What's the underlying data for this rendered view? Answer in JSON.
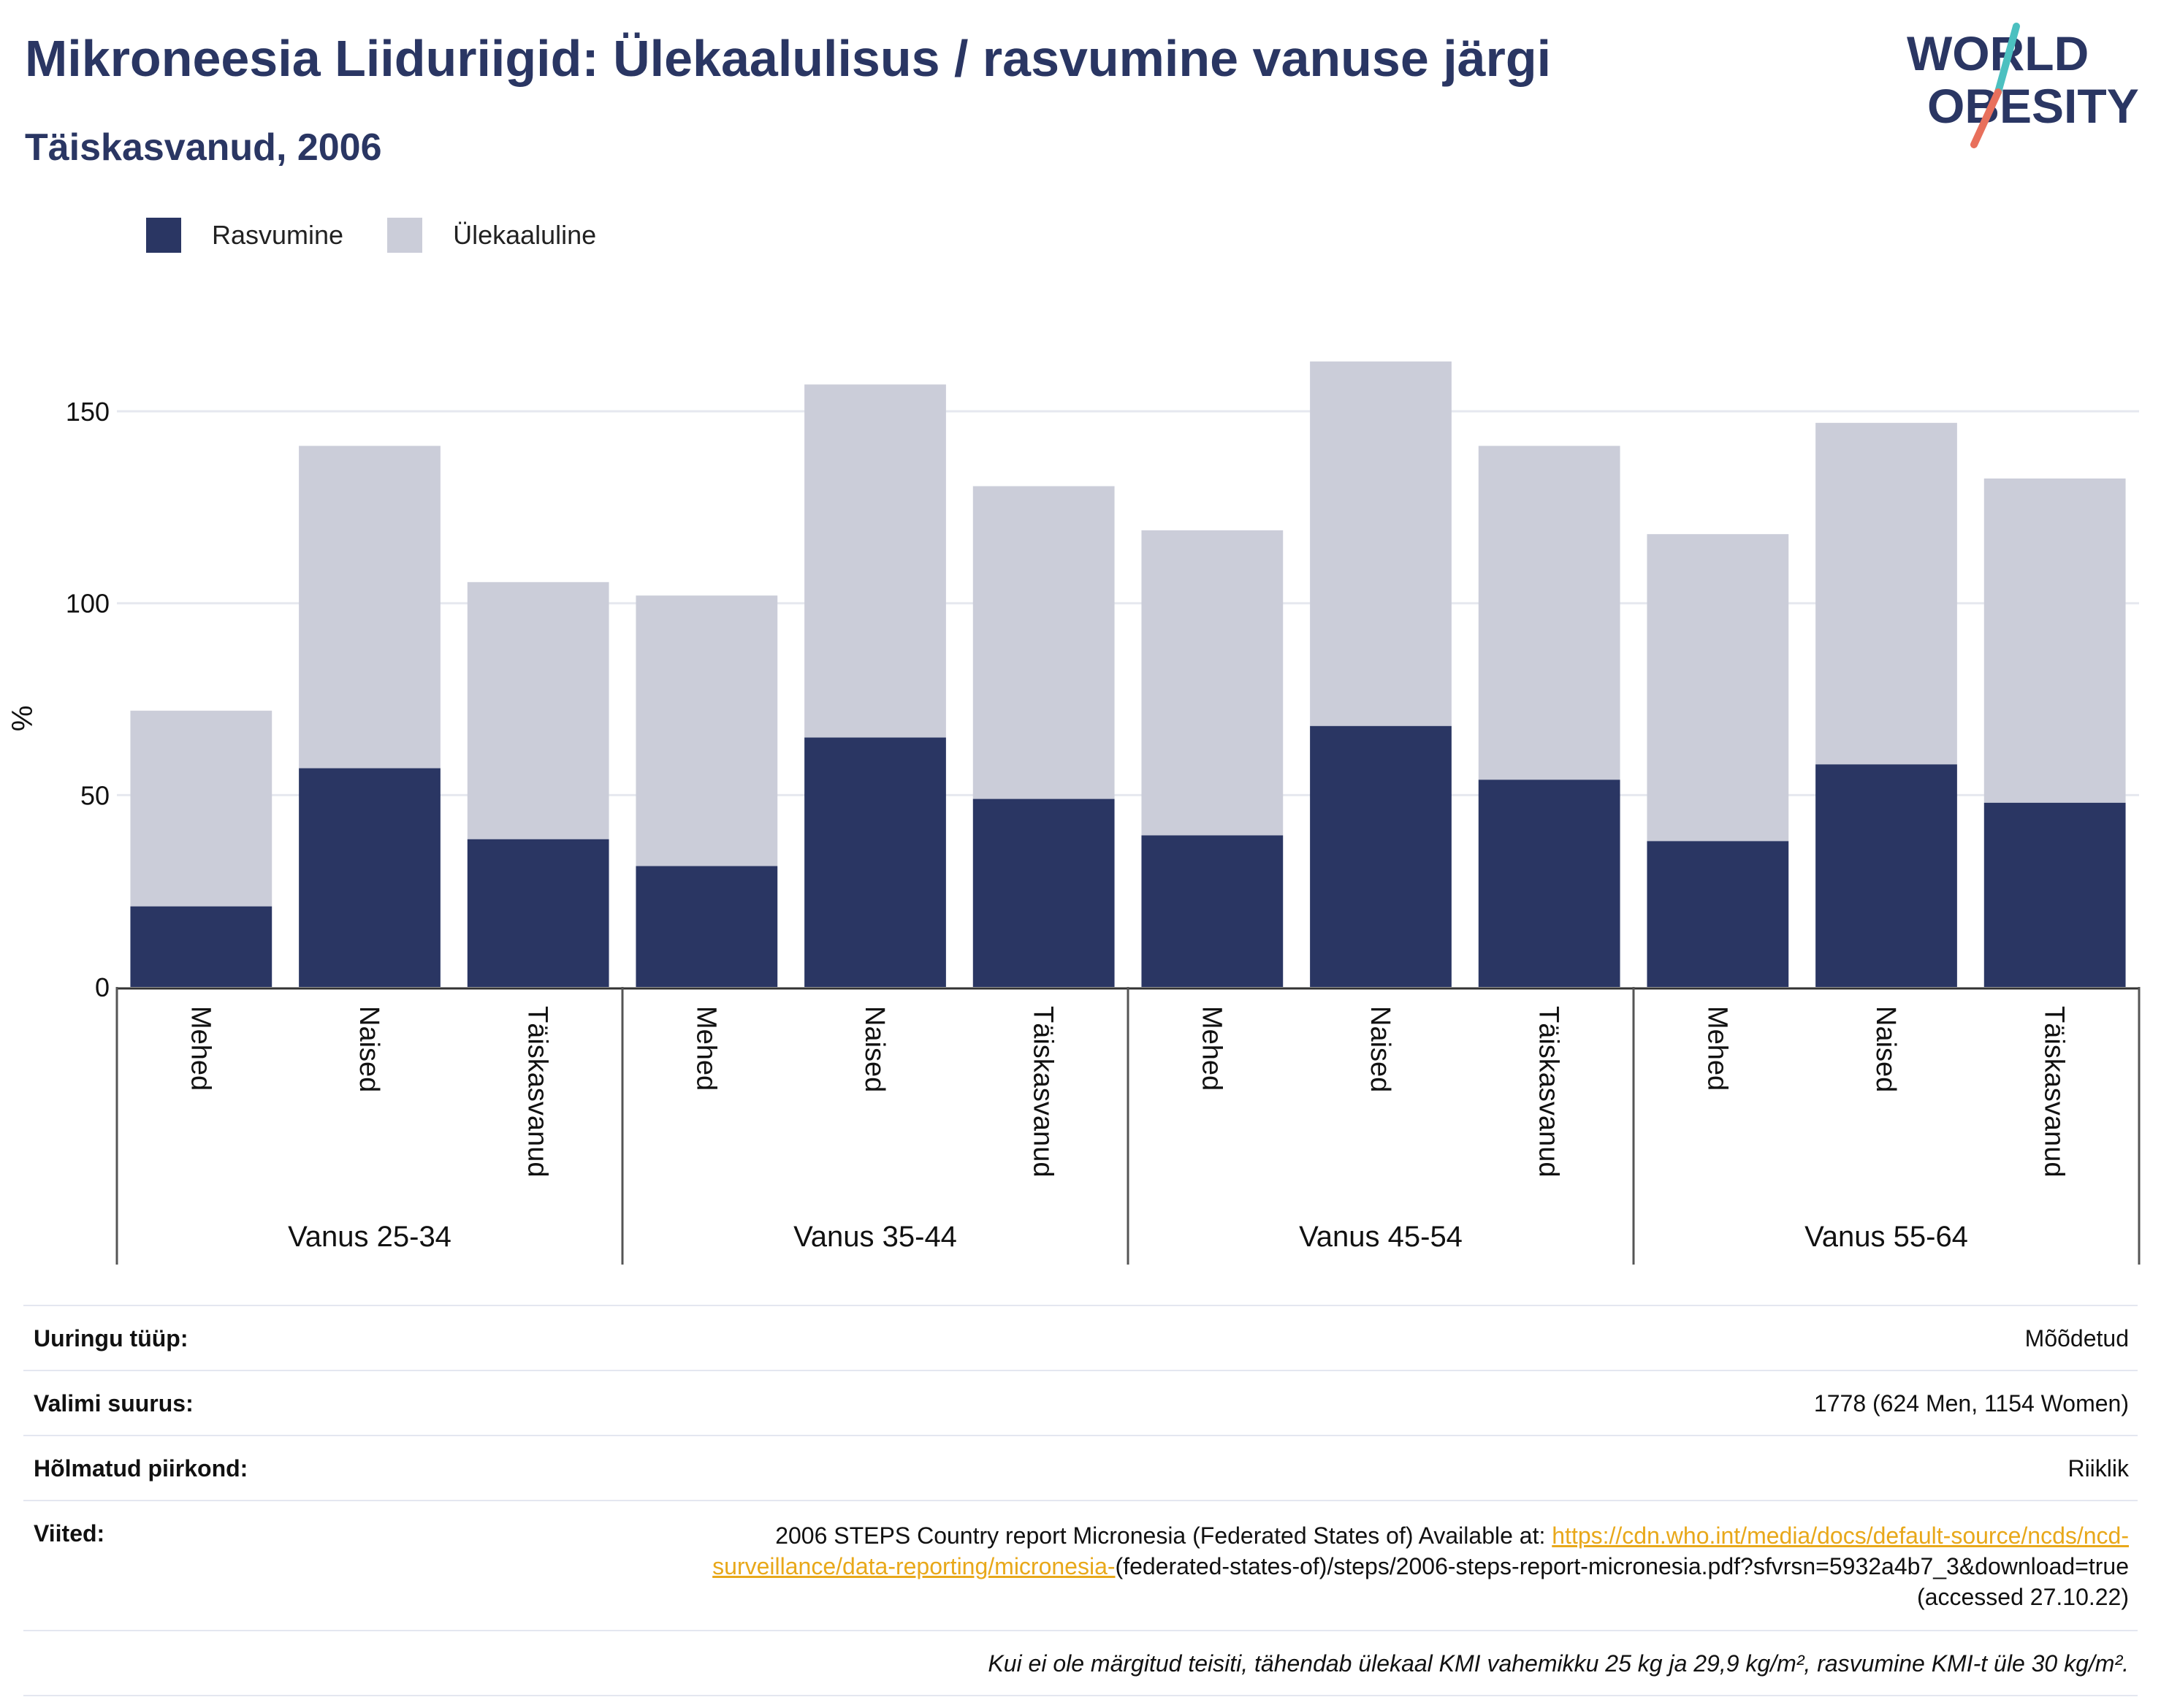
{
  "header": {
    "title": "Mikroneesia Liiduriigid: Ülekaalulisus / rasvumine vanuse järgi",
    "subtitle": "Täiskasvanud, 2006",
    "logo_line1": "WORLD",
    "logo_line2": "OBESITY"
  },
  "legend": {
    "obesity_label": "Rasvumine",
    "overweight_label": "Ülekaaluline"
  },
  "colors": {
    "obesity": "#2a3663",
    "overweight": "#cbcdd9",
    "title": "#2a3663",
    "link": "#e8a81a",
    "logo_teal": "#4cc0c0",
    "logo_coral": "#e8705c"
  },
  "chart_data": {
    "type": "bar",
    "stacked": true,
    "ylabel": "%",
    "ylim": [
      0,
      170
    ],
    "yticks": [
      0,
      50,
      100,
      150
    ],
    "grid": true,
    "legend_position": "top-left",
    "groups": [
      "Vanus 25-34",
      "Vanus 35-44",
      "Vanus 45-54",
      "Vanus 55-64"
    ],
    "categories": [
      "Mehed",
      "Naised",
      "Täiskasvanud"
    ],
    "series": [
      {
        "name": "Rasvumine",
        "color": "#2a3663",
        "values": [
          [
            21,
            57,
            38.5
          ],
          [
            31.5,
            65,
            49
          ],
          [
            39.5,
            68,
            54
          ],
          [
            38,
            58,
            48
          ]
        ]
      },
      {
        "name": "Ülekaaluline",
        "color": "#cbcdd9",
        "values": [
          [
            51,
            84,
            67
          ],
          [
            70.5,
            92,
            81.5
          ],
          [
            79.5,
            95,
            87
          ],
          [
            80,
            89,
            84.5
          ]
        ]
      }
    ]
  },
  "meta": {
    "survey_type_label": "Uuringu tüüp:",
    "survey_type_value": "Mõõdetud",
    "sample_size_label": "Valimi suurus:",
    "sample_size_value": "1778 (624 Men, 1154 Women)",
    "area_label": "Hõlmatud piirkond:",
    "area_value": "Riiklik",
    "references_label": "Viited:",
    "references_prefix": "2006 STEPS Country report Micronesia (Federated States of) Available at: ",
    "references_link": "https://cdn.who.int/media/docs/default-source/ncds/ncd-surveillance/data-reporting/micronesia-",
    "references_suffix": "(federated-states-of)/steps/2006-steps-report-micronesia.pdf?sfvrsn=5932a4b7_3&download=true (accessed 27.10.22)",
    "note": "Kui ei ole märgitud teisiti, tähendab ülekaal KMI vahemikku 25 kg ja 29,9 kg/m², rasvumine KMI-t üle 30 kg/m²."
  }
}
